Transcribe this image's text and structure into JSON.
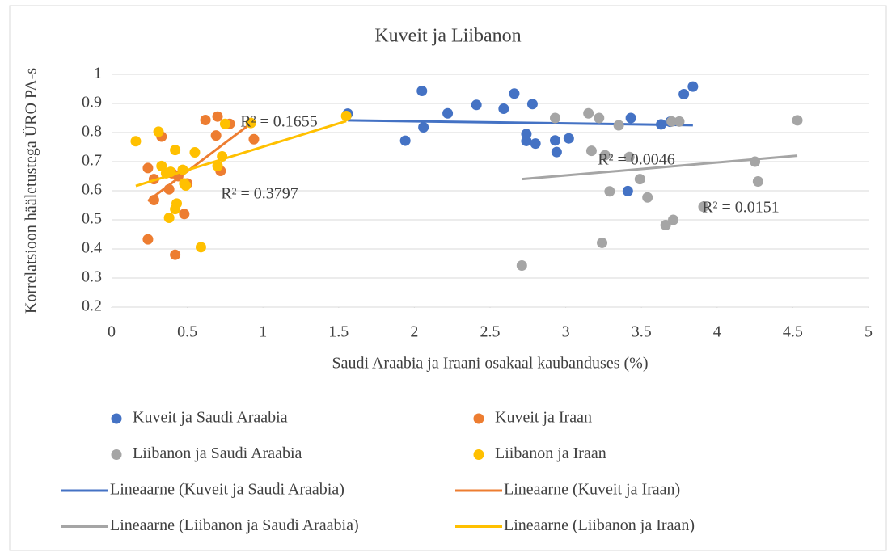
{
  "chart_data": {
    "type": "scatter",
    "title": "Kuveit ja Liibanon",
    "x_label": "Saudi Araabia ja Iraani osakaal kaubanduses (%)",
    "y_label": "Korrelatsioon hääletustega ÜRO PA-s",
    "xlim": [
      0,
      5
    ],
    "xticks": [
      0,
      0.5,
      1,
      1.5,
      2,
      2.5,
      3,
      3.5,
      4,
      4.5,
      5
    ],
    "ylim": [
      0.2,
      1
    ],
    "yticks": [
      0.2,
      0.3,
      0.4,
      0.5,
      0.6,
      0.7,
      0.8,
      0.9,
      1
    ],
    "grid": true,
    "legend": "bottom",
    "series": [
      {
        "name": "Kuveit ja Saudi Araabia",
        "color": "#4472c4",
        "x": [
          1.56,
          1.94,
          2.05,
          2.06,
          2.22,
          2.41,
          2.59,
          2.66,
          2.74,
          2.74,
          2.78,
          2.8,
          2.93,
          2.94,
          3.02,
          3.41,
          3.43,
          3.63,
          3.69,
          3.78,
          3.84
        ],
        "values": [
          0.865,
          0.772,
          0.943,
          0.818,
          0.866,
          0.895,
          0.882,
          0.934,
          0.795,
          0.771,
          0.898,
          0.762,
          0.773,
          0.733,
          0.78,
          0.599,
          0.85,
          0.828,
          0.837,
          0.932,
          0.958
        ],
        "trendline": {
          "name": "Lineaarne (Kuveit ja Saudi Araabia)",
          "label": "R² = 0.0046"
        }
      },
      {
        "name": "Kuveit ja Iraan",
        "color": "#ed7d31",
        "x": [
          0.24,
          0.24,
          0.28,
          0.28,
          0.33,
          0.38,
          0.4,
          0.42,
          0.44,
          0.48,
          0.5,
          0.62,
          0.69,
          0.7,
          0.72,
          0.78,
          0.94
        ],
        "values": [
          0.678,
          0.433,
          0.568,
          0.64,
          0.786,
          0.605,
          0.66,
          0.38,
          0.65,
          0.52,
          0.625,
          0.843,
          0.79,
          0.855,
          0.668,
          0.83,
          0.777
        ],
        "trendline": {
          "name": "Lineaarne (Kuveit ja Iraan)",
          "label": "R² = 0.3797"
        }
      },
      {
        "name": "Liibanon ja Saudi Araabia",
        "color": "#a5a5a5",
        "x": [
          2.71,
          2.93,
          3.15,
          3.17,
          3.22,
          3.24,
          3.26,
          3.29,
          3.35,
          3.42,
          3.49,
          3.54,
          3.66,
          3.7,
          3.71,
          3.75,
          3.91,
          4.25,
          4.27,
          4.53
        ],
        "values": [
          0.343,
          0.85,
          0.866,
          0.737,
          0.85,
          0.421,
          0.722,
          0.598,
          0.825,
          0.716,
          0.64,
          0.577,
          0.482,
          0.838,
          0.5,
          0.838,
          0.545,
          0.7,
          0.632,
          0.842
        ],
        "trendline": {
          "name": "Lineaarne (Liibanon ja Saudi Araabia)",
          "label": "R² = 0.0151"
        }
      },
      {
        "name": "Liibanon ja Iraan",
        "color": "#ffc000",
        "x": [
          0.16,
          0.31,
          0.33,
          0.36,
          0.38,
          0.39,
          0.42,
          0.42,
          0.43,
          0.47,
          0.48,
          0.49,
          0.55,
          0.59,
          0.7,
          0.73,
          0.75,
          0.92,
          1.55
        ],
        "values": [
          0.77,
          0.803,
          0.685,
          0.66,
          0.507,
          0.665,
          0.74,
          0.537,
          0.556,
          0.672,
          0.625,
          0.618,
          0.732,
          0.406,
          0.685,
          0.718,
          0.83,
          0.833,
          0.857
        ],
        "trendline": {
          "name": "Lineaarne (Liibanon ja Iraan)",
          "label": "R² = 0.1655"
        }
      }
    ]
  }
}
